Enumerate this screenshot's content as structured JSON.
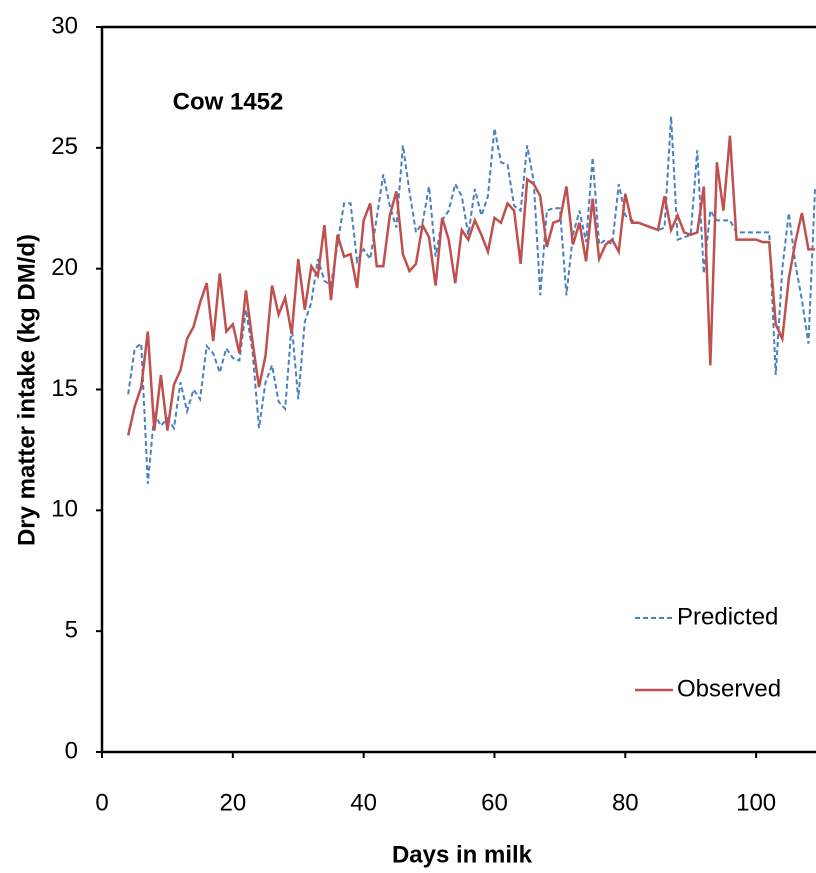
{
  "chart_data": {
    "type": "line",
    "annotation": "Cow 1452",
    "xlabel": "Days in milk",
    "ylabel": "Dry matter intake (kg DM/d)",
    "xlim": [
      0,
      109
    ],
    "xticks": [
      0,
      20,
      40,
      60,
      80,
      100
    ],
    "ylim": [
      0,
      30
    ],
    "yticks": [
      0,
      5,
      10,
      15,
      20,
      25,
      30
    ],
    "legend": "lower right",
    "x": [
      4,
      5,
      6,
      7,
      8,
      9,
      10,
      11,
      12,
      13,
      14,
      15,
      16,
      17,
      18,
      19,
      20,
      21,
      22,
      23,
      24,
      25,
      26,
      27,
      28,
      29,
      30,
      31,
      32,
      33,
      34,
      35,
      36,
      37,
      38,
      39,
      40,
      41,
      42,
      43,
      44,
      45,
      46,
      47,
      48,
      49,
      50,
      51,
      52,
      53,
      54,
      55,
      56,
      57,
      58,
      59,
      60,
      61,
      62,
      63,
      64,
      65,
      66,
      67,
      68,
      69,
      70,
      71,
      72,
      73,
      74,
      75,
      76,
      77,
      78,
      79,
      80,
      81,
      82,
      83,
      84,
      85,
      86,
      87,
      88,
      89,
      90,
      91,
      92,
      93,
      94,
      95,
      96,
      97,
      98,
      99,
      100,
      101,
      102,
      103,
      104,
      105,
      106,
      107,
      108,
      109
    ],
    "series": [
      {
        "name": "Predicted",
        "color": "#4a7fc4",
        "dashed": true,
        "values": [
          14.8,
          16.7,
          16.9,
          11.1,
          14.0,
          13.5,
          13.8,
          13.4,
          15.3,
          14.1,
          15.0,
          14.6,
          16.8,
          16.5,
          15.7,
          16.7,
          16.3,
          16.2,
          18.3,
          16.6,
          13.4,
          15.3,
          16.0,
          14.5,
          14.2,
          17.7,
          14.6,
          17.8,
          18.6,
          20.4,
          19.5,
          19.3,
          21.0,
          22.7,
          22.7,
          20.3,
          20.8,
          20.4,
          22.1,
          23.9,
          22.6,
          21.7,
          25.1,
          23.2,
          21.5,
          21.9,
          23.4,
          20.5,
          22.0,
          22.4,
          23.5,
          23.0,
          21.4,
          23.3,
          22.2,
          23.0,
          25.8,
          24.4,
          24.3,
          22.6,
          22.4,
          25.1,
          23.6,
          18.9,
          22.4,
          22.5,
          22.5,
          18.9,
          21.4,
          22.4,
          21.1,
          24.6,
          21.0,
          21.2,
          21.0,
          23.5,
          22.2,
          22.0,
          21.9,
          21.8,
          21.7,
          21.6,
          21.7,
          26.3,
          21.2,
          21.3,
          21.4,
          24.9,
          19.8,
          22.4,
          22.0,
          22.0,
          22.0,
          21.5,
          21.5,
          21.5,
          21.5,
          21.5,
          21.5,
          15.6,
          20.0,
          22.3,
          20.2,
          18.7,
          16.9,
          23.3
        ]
      },
      {
        "name": "Observed",
        "color": "#c0504d",
        "dashed": false,
        "values": [
          13.1,
          14.3,
          15.1,
          17.4,
          13.3,
          15.6,
          13.3,
          15.2,
          15.8,
          17.1,
          17.6,
          18.6,
          19.4,
          17.0,
          19.8,
          17.4,
          17.7,
          16.5,
          19.1,
          17.0,
          15.1,
          16.4,
          19.3,
          18.1,
          18.8,
          17.3,
          20.4,
          18.3,
          20.1,
          19.7,
          21.8,
          18.7,
          21.4,
          20.5,
          20.6,
          19.2,
          22.0,
          22.7,
          20.1,
          20.1,
          22.2,
          23.2,
          20.6,
          19.9,
          20.2,
          21.8,
          21.3,
          19.3,
          22.1,
          21.2,
          19.4,
          21.6,
          21.2,
          22.0,
          21.4,
          20.7,
          22.1,
          21.9,
          22.7,
          22.4,
          20.2,
          23.7,
          23.5,
          23.0,
          20.9,
          21.9,
          22.0,
          23.4,
          21.0,
          21.9,
          20.3,
          22.9,
          20.4,
          21.0,
          21.2,
          20.7,
          23.1,
          21.9,
          21.9,
          21.8,
          21.7,
          21.6,
          23.0,
          21.6,
          22.2,
          21.5,
          21.4,
          21.5,
          23.4,
          16.0,
          24.4,
          22.4,
          25.5,
          21.2,
          21.2,
          21.2,
          21.2,
          21.1,
          21.1,
          17.7,
          17.1,
          19.6,
          21.1,
          22.3,
          20.8,
          20.8
        ]
      }
    ]
  }
}
